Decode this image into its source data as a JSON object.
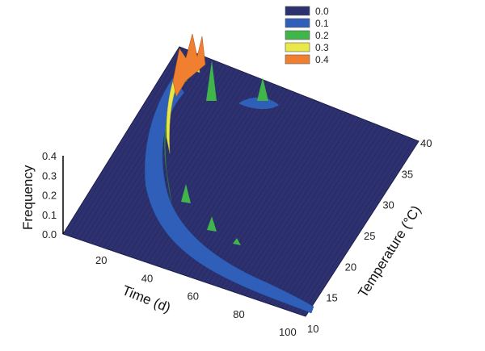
{
  "chart_data": {
    "type": "surface",
    "title": "",
    "xlabel": "Time (d)",
    "ylabel": "Temperature (°C)",
    "zlabel": "Frequency",
    "x_ticks": [
      20,
      40,
      60,
      80,
      100
    ],
    "y_ticks": [
      10,
      15,
      20,
      25,
      30,
      35,
      40
    ],
    "z_ticks": [
      "0.0",
      "0.1",
      "0.2",
      "0.3",
      "0.4"
    ],
    "xlim": [
      0,
      100
    ],
    "ylim": [
      10,
      40
    ],
    "zlim": [
      0,
      0.4
    ],
    "legend": {
      "placement": "top-right",
      "entries": [
        {
          "label": "0.0",
          "color": "#2e3170"
        },
        {
          "label": "0.1",
          "color": "#2f5fb8"
        },
        {
          "label": "0.2",
          "color": "#3fb54a"
        },
        {
          "label": "0.3",
          "color": "#e8e84a"
        },
        {
          "label": "0.4",
          "color": "#f08030"
        }
      ]
    },
    "ridge_peaks": [
      {
        "time": 5,
        "temperature": 38,
        "frequency": 0.42
      },
      {
        "time": 8,
        "temperature": 36,
        "frequency": 0.38
      },
      {
        "time": 20,
        "temperature": 30,
        "frequency": 0.22
      },
      {
        "time": 45,
        "temperature": 22,
        "frequency": 0.15
      },
      {
        "time": 60,
        "temperature": 18,
        "frequency": 0.12
      },
      {
        "time": 90,
        "temperature": 13,
        "frequency": 0.05
      },
      {
        "time": 30,
        "temperature": 37,
        "frequency": 0.18
      }
    ]
  }
}
